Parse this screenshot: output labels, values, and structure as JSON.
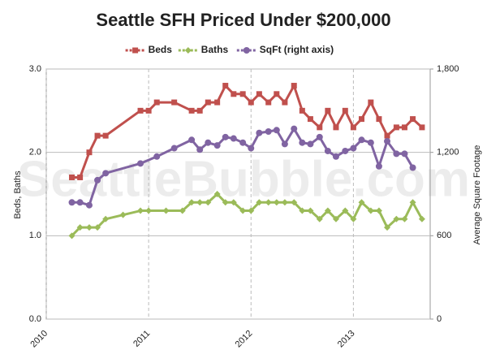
{
  "chart_data": {
    "type": "line",
    "title": "Seattle SFH Priced Under $200,000",
    "watermark": "SeattleBubble.com",
    "ylabel": "Beds, Baths",
    "y2label": "Average Square Footage",
    "xlim": [
      2010,
      2013.75
    ],
    "xticks": [
      2010,
      2011,
      2012,
      2013
    ],
    "ylim": [
      0,
      3
    ],
    "yticks": [
      {
        "value": 0,
        "label": "0.0"
      },
      {
        "value": 1,
        "label": "1.0"
      },
      {
        "value": 2,
        "label": "2.0"
      },
      {
        "value": 3,
        "label": "3.0"
      }
    ],
    "y2lim": [
      0,
      1800
    ],
    "y2ticks": [
      0,
      600,
      {
        "value": 1200,
        "label": "1,200"
      },
      {
        "value": 1800,
        "label": "1,800"
      }
    ],
    "grid": true,
    "legend": "top",
    "series": [
      {
        "name": "Beds",
        "color": "#c0504d",
        "marker": "square",
        "x": [
          2010.25,
          2010.33,
          2010.42,
          2010.5,
          2010.58,
          2010.92,
          2011.0,
          2011.08,
          2011.25,
          2011.42,
          2011.5,
          2011.58,
          2011.67,
          2011.75,
          2011.83,
          2011.92,
          2012.0,
          2012.08,
          2012.17,
          2012.25,
          2012.33,
          2012.42,
          2012.5,
          2012.58,
          2012.67,
          2012.75,
          2012.83,
          2012.92,
          2013.0,
          2013.08,
          2013.17,
          2013.25,
          2013.33,
          2013.42,
          2013.5,
          2013.58,
          2013.67
        ],
        "values": [
          1.7,
          1.7,
          2.0,
          2.2,
          2.2,
          2.5,
          2.5,
          2.6,
          2.6,
          2.5,
          2.5,
          2.6,
          2.6,
          2.8,
          2.7,
          2.7,
          2.6,
          2.7,
          2.6,
          2.7,
          2.6,
          2.8,
          2.5,
          2.4,
          2.3,
          2.5,
          2.3,
          2.5,
          2.3,
          2.4,
          2.6,
          2.4,
          2.2,
          2.3,
          2.3,
          2.4,
          2.3
        ]
      },
      {
        "name": "Baths",
        "color": "#9bbb59",
        "marker": "diamond",
        "x": [
          2010.25,
          2010.33,
          2010.42,
          2010.5,
          2010.58,
          2010.75,
          2010.92,
          2011.0,
          2011.17,
          2011.33,
          2011.42,
          2011.5,
          2011.58,
          2011.67,
          2011.75,
          2011.83,
          2011.92,
          2012.0,
          2012.08,
          2012.17,
          2012.25,
          2012.33,
          2012.42,
          2012.5,
          2012.58,
          2012.67,
          2012.75,
          2012.83,
          2012.92,
          2013.0,
          2013.08,
          2013.17,
          2013.25,
          2013.33,
          2013.42,
          2013.5,
          2013.58,
          2013.67
        ],
        "values": [
          1.0,
          1.1,
          1.1,
          1.1,
          1.2,
          1.25,
          1.3,
          1.3,
          1.3,
          1.3,
          1.4,
          1.4,
          1.4,
          1.5,
          1.4,
          1.4,
          1.3,
          1.3,
          1.4,
          1.4,
          1.4,
          1.4,
          1.4,
          1.3,
          1.3,
          1.2,
          1.3,
          1.2,
          1.3,
          1.2,
          1.4,
          1.3,
          1.3,
          1.1,
          1.2,
          1.2,
          1.4,
          1.2
        ]
      },
      {
        "name": "SqFt (right axis)",
        "color": "#8064a2",
        "marker": "circle",
        "axis": "y2",
        "x": [
          2010.25,
          2010.33,
          2010.42,
          2010.5,
          2010.58,
          2010.92,
          2011.08,
          2011.25,
          2011.42,
          2011.5,
          2011.58,
          2011.67,
          2011.75,
          2011.83,
          2011.92,
          2012.0,
          2012.08,
          2012.17,
          2012.25,
          2012.33,
          2012.42,
          2012.5,
          2012.58,
          2012.67,
          2012.75,
          2012.83,
          2012.92,
          2013.0,
          2013.08,
          2013.17,
          2013.25,
          2013.33,
          2013.42,
          2013.5,
          2013.58
        ],
        "values": [
          840,
          840,
          820,
          1000,
          1050,
          1120,
          1170,
          1230,
          1290,
          1220,
          1270,
          1250,
          1310,
          1300,
          1270,
          1230,
          1340,
          1350,
          1360,
          1260,
          1370,
          1270,
          1260,
          1310,
          1210,
          1170,
          1210,
          1230,
          1290,
          1270,
          1100,
          1280,
          1190,
          1190,
          1090
        ]
      }
    ]
  }
}
